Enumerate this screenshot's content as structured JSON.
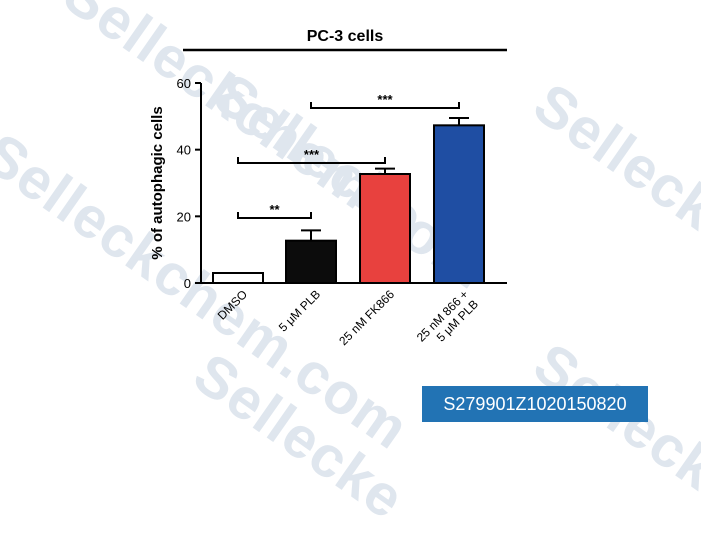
{
  "chart_data": {
    "type": "bar",
    "title": "PC-3 cells",
    "ylabel": "% of autophagic cells",
    "xlabel": "",
    "ylim": [
      0,
      60
    ],
    "yticks": [
      0,
      20,
      40,
      60
    ],
    "grid": false,
    "categories": [
      "DMSO",
      "5 μM PLB",
      "25 nM FK866",
      "25 nM 866 + 5 μM PLB"
    ],
    "category_lines": [
      [
        "DMSO"
      ],
      [
        "5 μM PLB"
      ],
      [
        "25 nM FK866"
      ],
      [
        "25 nM 866 +",
        "5 μM PLB"
      ]
    ],
    "values": [
      3,
      12.7,
      32.7,
      47.3
    ],
    "errors": [
      0,
      3.1,
      1.6,
      2.2
    ],
    "colors": [
      "#ffffff",
      "#0c0c0c",
      "#e8413e",
      "#1f4ea3"
    ],
    "significance": [
      {
        "from": 0,
        "to": 1,
        "label": "**"
      },
      {
        "from": 0,
        "to": 2,
        "label": "***"
      },
      {
        "from": 1,
        "to": 3,
        "label": "***"
      }
    ]
  },
  "watermark": {
    "text": "Sellecke",
    "suffix": ".com",
    "full": "Selleckchem.com"
  },
  "catalog_code": "S279901Z1020150820"
}
